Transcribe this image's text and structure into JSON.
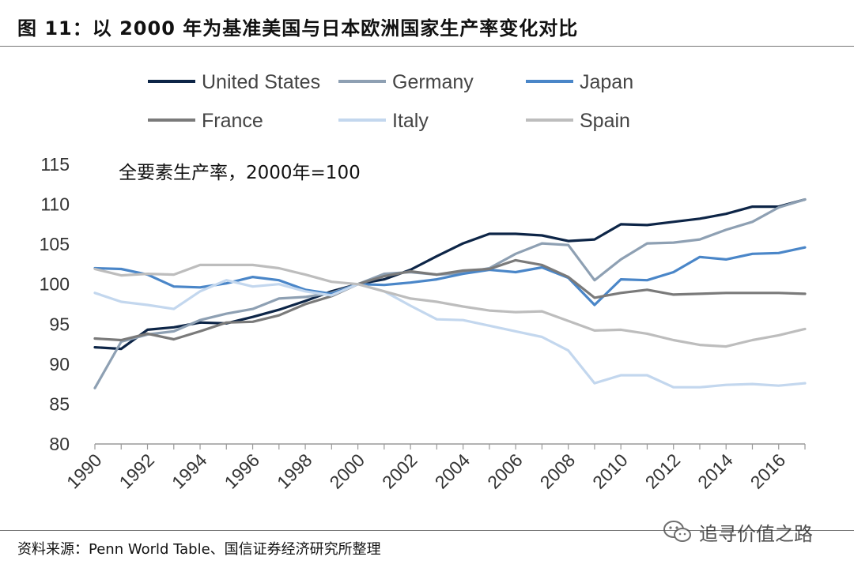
{
  "header": {
    "title": "图 11：以 2000 年为基准美国与日本欧洲国家生产率变化对比"
  },
  "footer": {
    "source": "资料来源：Penn World Table、国信证券经济研究所整理",
    "watermark": "追寻价值之路"
  },
  "chart_data": {
    "type": "line",
    "title": "",
    "annotation": "全要素生产率，2000年=100",
    "xlabel": "",
    "ylabel": "",
    "ylim": [
      80,
      115
    ],
    "yticks": [
      80,
      85,
      90,
      95,
      100,
      105,
      110,
      115
    ],
    "x": [
      1990,
      1991,
      1992,
      1993,
      1994,
      1995,
      1996,
      1997,
      1998,
      1999,
      2000,
      2001,
      2002,
      2003,
      2004,
      2005,
      2006,
      2007,
      2008,
      2009,
      2010,
      2011,
      2012,
      2013,
      2014,
      2015,
      2016,
      2017
    ],
    "xtick_labels": [
      "1990",
      "1992",
      "1994",
      "1996",
      "1998",
      "2000",
      "2002",
      "2004",
      "2006",
      "2008",
      "2010",
      "2012",
      "2014",
      "2016"
    ],
    "legend_position": "top",
    "series": [
      {
        "name": "United States",
        "color": "#0d2547",
        "values": [
          92.1,
          91.9,
          94.3,
          94.6,
          95.2,
          95.1,
          95.9,
          96.8,
          97.9,
          99.1,
          100,
          100.6,
          101.8,
          103.5,
          105.1,
          106.3,
          106.3,
          106.1,
          105.4,
          105.6,
          107.5,
          107.4,
          107.8,
          108.2,
          108.8,
          109.7,
          109.7,
          110.6
        ]
      },
      {
        "name": "Germany",
        "color": "#8ea0b3",
        "values": [
          87.0,
          92.8,
          93.7,
          94.1,
          95.5,
          96.3,
          96.9,
          98.2,
          98.4,
          98.9,
          100,
          101.3,
          101.5,
          101.2,
          101.4,
          102.0,
          103.8,
          105.1,
          104.9,
          100.5,
          103.1,
          105.1,
          105.2,
          105.6,
          106.8,
          107.8,
          109.6,
          110.6
        ]
      },
      {
        "name": "Japan",
        "color": "#4a86c8",
        "values": [
          102.0,
          101.9,
          101.2,
          99.7,
          99.6,
          100.1,
          100.9,
          100.5,
          99.3,
          98.8,
          100,
          99.9,
          100.2,
          100.6,
          101.3,
          101.8,
          101.5,
          102.1,
          100.8,
          97.4,
          100.6,
          100.5,
          101.5,
          103.4,
          103.1,
          103.8,
          103.9,
          104.6
        ]
      },
      {
        "name": "France",
        "color": "#7a7a7a",
        "values": [
          93.2,
          93.0,
          93.8,
          93.1,
          94.1,
          95.2,
          95.3,
          96.1,
          97.5,
          98.5,
          100,
          101.0,
          101.6,
          101.2,
          101.7,
          101.9,
          103.0,
          102.4,
          100.9,
          98.3,
          98.9,
          99.3,
          98.7,
          98.8,
          98.9,
          98.9,
          98.9,
          98.8
        ]
      },
      {
        "name": "Italy",
        "color": "#c3d7ee",
        "values": [
          98.9,
          97.8,
          97.4,
          96.9,
          99.1,
          100.5,
          99.7,
          100.0,
          99.1,
          98.6,
          100,
          99.1,
          97.3,
          95.6,
          95.5,
          94.8,
          94.1,
          93.4,
          91.7,
          87.6,
          88.6,
          88.6,
          87.1,
          87.1,
          87.4,
          87.5,
          87.3,
          87.6
        ]
      },
      {
        "name": "Spain",
        "color": "#bdbdbd",
        "values": [
          101.9,
          101.1,
          101.3,
          101.2,
          102.4,
          102.4,
          102.4,
          102.0,
          101.2,
          100.3,
          100,
          99.1,
          98.2,
          97.8,
          97.2,
          96.7,
          96.5,
          96.6,
          95.4,
          94.2,
          94.3,
          93.8,
          93.0,
          92.4,
          92.2,
          93.0,
          93.6,
          94.4
        ]
      }
    ]
  }
}
